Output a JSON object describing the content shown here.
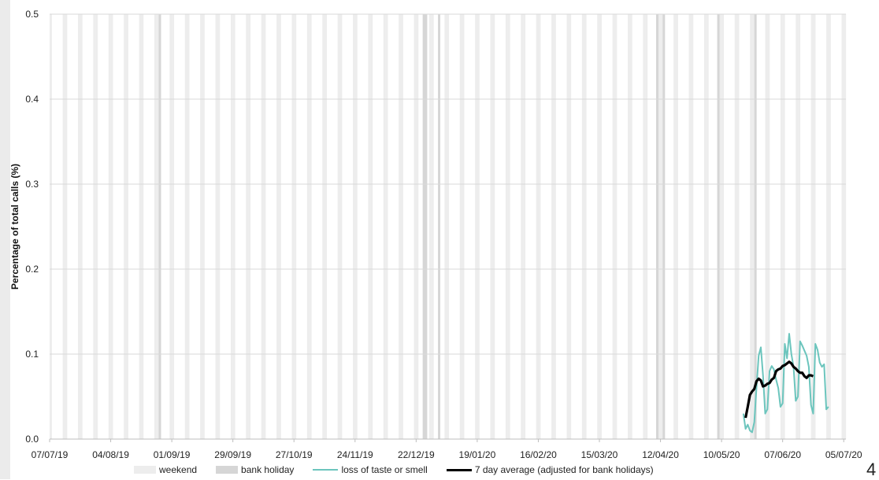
{
  "chart_data": {
    "type": "line",
    "title": "",
    "ylabel": "Percentage of total calls (%)",
    "xlabel": "",
    "ylim": [
      0.0,
      0.5
    ],
    "yticks": [
      "0.0",
      "0.1",
      "0.2",
      "0.3",
      "0.4",
      "0.5"
    ],
    "xlim": [
      "07/07/19",
      "06/07/20"
    ],
    "xtick_labels": [
      "07/07/19",
      "04/08/19",
      "01/09/19",
      "29/09/19",
      "27/10/19",
      "24/11/19",
      "22/12/19",
      "19/01/20",
      "16/02/20",
      "15/03/20",
      "12/04/20",
      "10/05/20",
      "07/06/20",
      "05/07/20"
    ],
    "grid": "horizontal",
    "legend_placement": "bottom",
    "weekend_color": "#ededed",
    "bank_holiday_color": "#d6d6d6",
    "bank_holidays": [
      "26/08/19",
      "25/12/19",
      "26/12/19",
      "01/01/20",
      "10/04/20",
      "13/04/20",
      "08/05/20",
      "25/05/20"
    ],
    "series": [
      {
        "name": "loss of taste or smell",
        "color": "#6cc5bd",
        "points": [
          [
            "20/05/20",
            0.03
          ],
          [
            "21/05/20",
            0.012
          ],
          [
            "22/05/20",
            0.017
          ],
          [
            "23/05/20",
            0.01
          ],
          [
            "24/05/20",
            0.008
          ],
          [
            "25/05/20",
            0.02
          ],
          [
            "26/05/20",
            0.06
          ],
          [
            "27/05/20",
            0.098
          ],
          [
            "28/05/20",
            0.108
          ],
          [
            "29/05/20",
            0.075
          ],
          [
            "30/05/20",
            0.03
          ],
          [
            "31/05/20",
            0.035
          ],
          [
            "01/06/20",
            0.08
          ],
          [
            "02/06/20",
            0.086
          ],
          [
            "03/06/20",
            0.082
          ],
          [
            "04/06/20",
            0.07
          ],
          [
            "05/06/20",
            0.06
          ],
          [
            "06/06/20",
            0.038
          ],
          [
            "07/06/20",
            0.042
          ],
          [
            "08/06/20",
            0.112
          ],
          [
            "09/06/20",
            0.095
          ],
          [
            "10/06/20",
            0.124
          ],
          [
            "11/06/20",
            0.1
          ],
          [
            "12/06/20",
            0.085
          ],
          [
            "13/06/20",
            0.045
          ],
          [
            "14/06/20",
            0.05
          ],
          [
            "15/06/20",
            0.115
          ],
          [
            "16/06/20",
            0.11
          ],
          [
            "17/06/20",
            0.104
          ],
          [
            "18/06/20",
            0.098
          ],
          [
            "19/06/20",
            0.085
          ],
          [
            "20/06/20",
            0.04
          ],
          [
            "21/06/20",
            0.03
          ],
          [
            "22/06/20",
            0.112
          ],
          [
            "23/06/20",
            0.105
          ],
          [
            "24/06/20",
            0.09
          ],
          [
            "25/06/20",
            0.085
          ],
          [
            "26/06/20",
            0.088
          ],
          [
            "27/06/20",
            0.035
          ],
          [
            "28/06/20",
            0.038
          ]
        ]
      },
      {
        "name": "7 day average (adjusted for bank holidays)",
        "color": "#000000",
        "points": [
          [
            "21/05/20",
            0.025
          ],
          [
            "22/05/20",
            0.038
          ],
          [
            "23/05/20",
            0.052
          ],
          [
            "24/05/20",
            0.056
          ],
          [
            "25/05/20",
            0.059
          ],
          [
            "26/05/20",
            0.068
          ],
          [
            "27/05/20",
            0.071
          ],
          [
            "28/05/20",
            0.069
          ],
          [
            "29/05/20",
            0.062
          ],
          [
            "30/05/20",
            0.063
          ],
          [
            "31/05/20",
            0.065
          ],
          [
            "01/06/20",
            0.066
          ],
          [
            "02/06/20",
            0.07
          ],
          [
            "03/06/20",
            0.072
          ],
          [
            "04/06/20",
            0.08
          ],
          [
            "05/06/20",
            0.082
          ],
          [
            "06/06/20",
            0.083
          ],
          [
            "07/06/20",
            0.086
          ],
          [
            "08/06/20",
            0.087
          ],
          [
            "09/06/20",
            0.089
          ],
          [
            "10/06/20",
            0.091
          ],
          [
            "11/06/20",
            0.089
          ],
          [
            "12/06/20",
            0.085
          ],
          [
            "13/06/20",
            0.083
          ],
          [
            "14/06/20",
            0.08
          ],
          [
            "15/06/20",
            0.078
          ],
          [
            "16/06/20",
            0.078
          ],
          [
            "17/06/20",
            0.074
          ],
          [
            "18/06/20",
            0.072
          ],
          [
            "19/06/20",
            0.075
          ],
          [
            "20/06/20",
            0.075
          ],
          [
            "21/06/20",
            0.074
          ]
        ]
      }
    ]
  },
  "legend": {
    "weekend": "weekend",
    "bank_holiday": "bank holiday",
    "series1": "loss of taste or smell",
    "series2": "7 day average (adjusted for bank holidays)"
  },
  "page_number": "4"
}
